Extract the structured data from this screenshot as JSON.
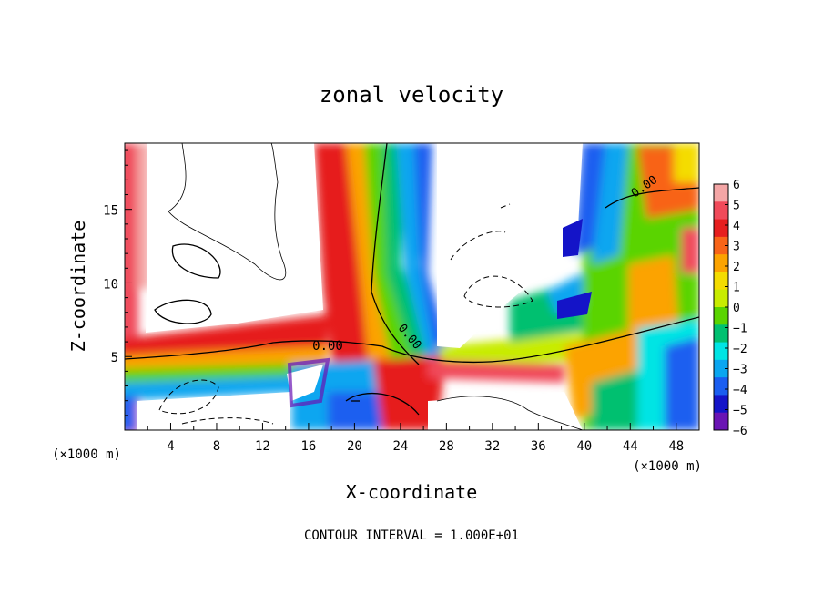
{
  "chart_data": {
    "type": "heatmap",
    "title": "zonal velocity",
    "xlabel": "X-coordinate",
    "ylabel": "Z-coordinate",
    "x_unit": "(×1000 m)",
    "x_unit_right": "(×1000 m)",
    "footer": "CONTOUR INTERVAL = 1.000E+01",
    "xlim": [
      0,
      50
    ],
    "ylim": [
      0,
      19.5
    ],
    "x_ticks": [
      4,
      8,
      12,
      16,
      20,
      24,
      28,
      32,
      36,
      40,
      44,
      48
    ],
    "y_ticks": [
      5,
      10,
      15
    ],
    "colorbar": {
      "min": -6,
      "max": 6,
      "ticks": [
        6,
        5,
        4,
        3,
        2,
        1,
        0,
        -1,
        -2,
        -3,
        -4,
        -5,
        -6
      ],
      "colors": [
        "#f4a6a6",
        "#f04a5a",
        "#e61e1e",
        "#f86418",
        "#fca300",
        "#f4dc00",
        "#c8ec00",
        "#5ad400",
        "#00c070",
        "#00e4e4",
        "#0aa6f0",
        "#1a5ef0",
        "#1414c8",
        "#6a14b4"
      ]
    },
    "contour_labels": [
      {
        "text": "0.00",
        "x": 15.5,
        "z": 6.0
      },
      {
        "text": "0.00",
        "x": 24.5,
        "z": 7.5
      },
      {
        "text": "0.00",
        "x": 45.5,
        "z": 16.5
      }
    ]
  }
}
